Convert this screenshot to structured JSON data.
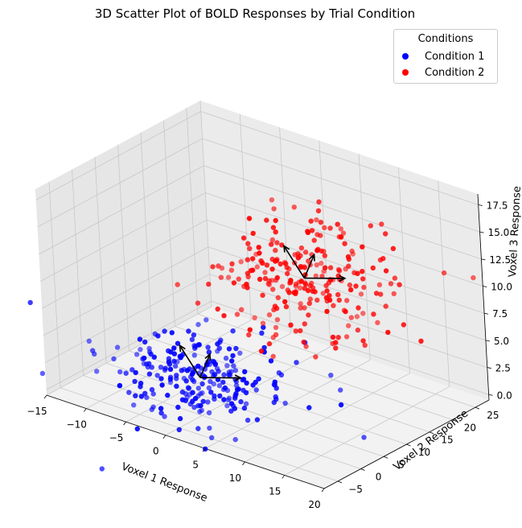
{
  "chart_data": {
    "type": "scatter3d",
    "title": "3D Scatter Plot of BOLD Responses by Trial Condition",
    "xlabel": "Voxel 1 Response",
    "ylabel": "Voxel 2 Response",
    "zlabel": "Voxel 3 Response",
    "x_ticks": [
      "−15",
      "−10",
      "−5",
      "0",
      "5",
      "10",
      "15",
      "20"
    ],
    "y_ticks": [
      "−5",
      "0",
      "5",
      "10",
      "15",
      "20",
      "25"
    ],
    "z_ticks": [
      "0.0",
      "2.5",
      "5.0",
      "7.5",
      "10.0",
      "12.5",
      "15.0",
      "17.5"
    ],
    "xlim": [
      -15,
      20
    ],
    "ylim": [
      -8,
      28
    ],
    "zlim": [
      -0.5,
      18.5
    ],
    "grid": true,
    "legend": {
      "title": "Conditions",
      "position": "upper right"
    },
    "series": [
      {
        "name": "Condition 1",
        "color": "#0000ff",
        "n": 250,
        "mean": [
          0,
          0,
          3
        ],
        "sd": [
          5,
          5,
          1.5
        ]
      },
      {
        "name": "Condition 2",
        "color": "#ff0000",
        "n": 250,
        "mean": [
          5,
          15,
          10
        ],
        "sd": [
          5,
          5,
          2.5
        ]
      }
    ],
    "arrows": {
      "color": "#000000",
      "origins": [
        [
          0,
          0,
          3
        ],
        [
          5,
          15,
          10
        ]
      ],
      "vectors": [
        [
          [
            4,
            2,
            0.5
          ],
          [
            -1,
            4,
            1
          ],
          [
            -3,
            1,
            2
          ]
        ],
        [
          [
            4,
            2,
            0.5
          ],
          [
            -1,
            4,
            1
          ],
          [
            -3,
            1,
            2
          ]
        ]
      ]
    }
  },
  "legend": {
    "title": "Conditions",
    "items": [
      {
        "label": "Condition 1",
        "color": "#0000ff"
      },
      {
        "label": "Condition 2",
        "color": "#ff0000"
      }
    ]
  }
}
